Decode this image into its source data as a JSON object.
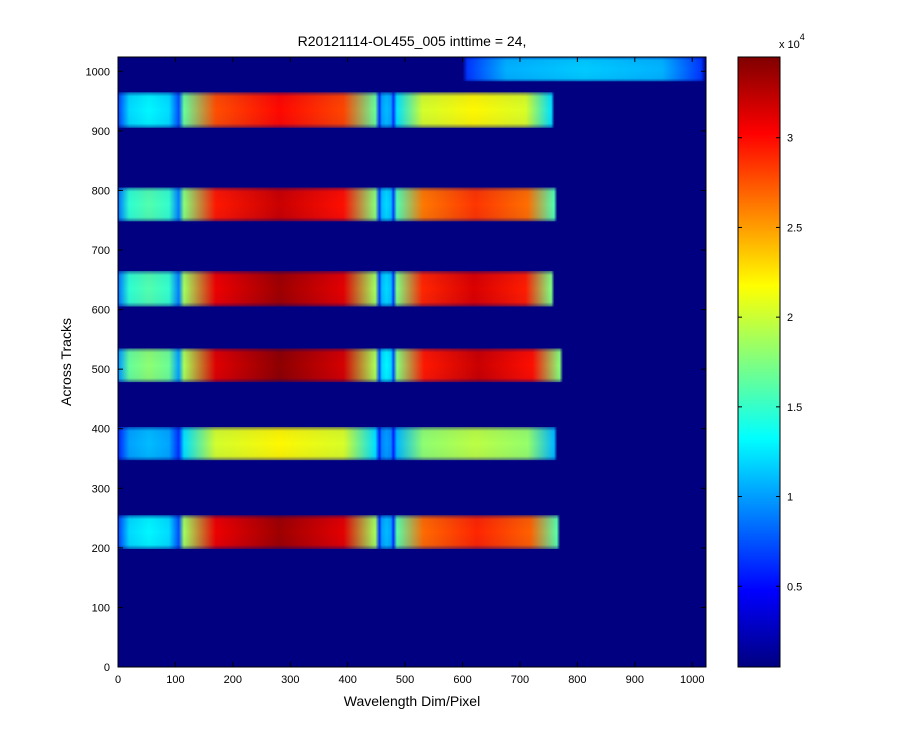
{
  "chart_data": {
    "type": "heatmap",
    "title": "R20121114-OL455_005 inttime = 24,",
    "xlabel": "Wavelength Dim/Pixel",
    "ylabel": "Across Tracks",
    "xlim": [
      0,
      1024
    ],
    "ylim": [
      0,
      1024
    ],
    "y_direction": "up",
    "xticks": [
      0,
      100,
      200,
      300,
      400,
      500,
      600,
      700,
      800,
      900,
      1000
    ],
    "yticks": [
      0,
      100,
      200,
      300,
      400,
      500,
      600,
      700,
      800,
      900,
      1000
    ],
    "colormap": "jet",
    "background_value": 500,
    "colorbar": {
      "clim": [
        500,
        34500
      ],
      "ticks": [
        {
          "value": 5000,
          "label": "0.5"
        },
        {
          "value": 10000,
          "label": "1"
        },
        {
          "value": 15000,
          "label": "1.5"
        },
        {
          "value": 20000,
          "label": "2"
        },
        {
          "value": 25000,
          "label": "2.5"
        },
        {
          "value": 30000,
          "label": "3"
        }
      ],
      "multiplier_base": "x 10",
      "multiplier_exponent": "4"
    },
    "stripes": [
      {
        "y_range": [
          198,
          255
        ],
        "x_range": [
          0,
          770
        ],
        "segments": [
          {
            "x_range": [
              0,
              108
            ],
            "peak": 13000
          },
          {
            "x_range": [
              108,
              455
            ],
            "peak": 33500
          },
          {
            "x_range": [
              455,
              480
            ],
            "peak": 11000
          },
          {
            "x_range": [
              480,
              770
            ],
            "peak": 29000
          }
        ]
      },
      {
        "y_range": [
          347,
          403
        ],
        "x_range": [
          0,
          765
        ],
        "segments": [
          {
            "x_range": [
              0,
              108
            ],
            "peak": 11000
          },
          {
            "x_range": [
              108,
              455
            ],
            "peak": 22000
          },
          {
            "x_range": [
              455,
              480
            ],
            "peak": 10000
          },
          {
            "x_range": [
              480,
              765
            ],
            "peak": 19500
          }
        ]
      },
      {
        "y_range": [
          478,
          535
        ],
        "x_range": [
          0,
          775
        ],
        "segments": [
          {
            "x_range": [
              0,
              108
            ],
            "peak": 18000
          },
          {
            "x_range": [
              108,
              455
            ],
            "peak": 34000
          },
          {
            "x_range": [
              455,
              480
            ],
            "peak": 13000
          },
          {
            "x_range": [
              480,
              775
            ],
            "peak": 32000
          }
        ]
      },
      {
        "y_range": [
          605,
          665
        ],
        "x_range": [
          0,
          760
        ],
        "segments": [
          {
            "x_range": [
              0,
              108
            ],
            "peak": 16000
          },
          {
            "x_range": [
              108,
              455
            ],
            "peak": 33500
          },
          {
            "x_range": [
              455,
              480
            ],
            "peak": 12000
          },
          {
            "x_range": [
              480,
              760
            ],
            "peak": 31500
          }
        ]
      },
      {
        "y_range": [
          748,
          805
        ],
        "x_range": [
          0,
          765
        ],
        "segments": [
          {
            "x_range": [
              0,
              108
            ],
            "peak": 16000
          },
          {
            "x_range": [
              108,
              455
            ],
            "peak": 32000
          },
          {
            "x_range": [
              455,
              480
            ],
            "peak": 12000
          },
          {
            "x_range": [
              480,
              765
            ],
            "peak": 28500
          }
        ]
      },
      {
        "y_range": [
          905,
          965
        ],
        "x_range": [
          0,
          760
        ],
        "segments": [
          {
            "x_range": [
              0,
              108
            ],
            "peak": 13000
          },
          {
            "x_range": [
              108,
              455
            ],
            "peak": 30000
          },
          {
            "x_range": [
              455,
              480
            ],
            "peak": 11000
          },
          {
            "x_range": [
              480,
              760
            ],
            "peak": 22000
          }
        ]
      },
      {
        "y_range": [
          983,
          1024
        ],
        "x_range": [
          600,
          1024
        ],
        "segments": [
          {
            "x_range": [
              600,
              1024
            ],
            "peak": 11500
          }
        ]
      }
    ]
  }
}
